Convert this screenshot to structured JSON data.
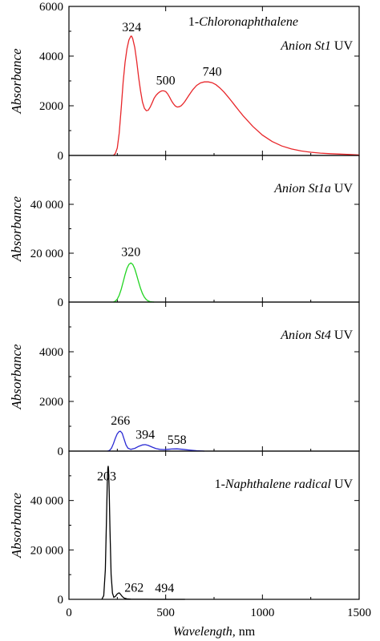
{
  "chart_data": [
    {
      "type": "line",
      "title": "",
      "annotation_line1_prefix": "1-",
      "annotation_line1_italic": "Chloronaphthalene",
      "annotation_line1_suffix": "",
      "annotation_line2_prefix": "",
      "annotation_line2_italic": "Anion St1",
      "annotation_line2_suffix": " UV",
      "ylabel": "Absorbance",
      "xlim": [
        0,
        1500
      ],
      "ylim": [
        0,
        6000
      ],
      "yticks": [
        0,
        2000,
        4000,
        6000
      ],
      "ytick_labels": [
        "0",
        "2000",
        "4000",
        "6000"
      ],
      "color": "#e8262a",
      "peak_labels": [
        {
          "x": 324,
          "y": 4800,
          "text": "324"
        },
        {
          "x": 500,
          "y": 2600,
          "text": "500"
        },
        {
          "x": 740,
          "y": 2950,
          "text": "740"
        }
      ],
      "series": [
        {
          "x": [
            230,
            240,
            250,
            260,
            270,
            280,
            290,
            300,
            310,
            320,
            324,
            330,
            340,
            350,
            360,
            370,
            380,
            390,
            400,
            410,
            420,
            430,
            440,
            450,
            460,
            470,
            480,
            490,
            500,
            510,
            520,
            530,
            540,
            550,
            560,
            570,
            580,
            590,
            600,
            620,
            640,
            660,
            680,
            700,
            720,
            740,
            760,
            780,
            800,
            820,
            840,
            860,
            880,
            900,
            950,
            1000,
            1050,
            1100,
            1150,
            1200,
            1250,
            1300,
            1350,
            1400,
            1450,
            1500
          ],
          "y": [
            0,
            80,
            300,
            900,
            1900,
            2950,
            3750,
            4300,
            4650,
            4800,
            4800,
            4700,
            4350,
            3800,
            3150,
            2600,
            2150,
            1900,
            1800,
            1820,
            1950,
            2120,
            2300,
            2420,
            2500,
            2560,
            2600,
            2600,
            2570,
            2480,
            2350,
            2200,
            2080,
            1990,
            1950,
            1960,
            2000,
            2080,
            2180,
            2420,
            2650,
            2820,
            2920,
            2960,
            2960,
            2930,
            2850,
            2720,
            2560,
            2380,
            2190,
            1990,
            1790,
            1600,
            1170,
            820,
            560,
            380,
            260,
            180,
            130,
            95,
            70,
            55,
            40,
            20
          ]
        }
      ]
    },
    {
      "type": "line",
      "title": "",
      "annotation_line1_prefix": "",
      "annotation_line1_italic": "",
      "annotation_line1_suffix": "",
      "annotation_line2_prefix": "",
      "annotation_line2_italic": "Anion St1a",
      "annotation_line2_suffix": " UV",
      "ylabel": "Absorbance",
      "xlim": [
        0,
        1500
      ],
      "ylim": [
        0,
        60000
      ],
      "yticks": [
        0,
        20000,
        40000
      ],
      "ytick_labels": [
        "0",
        "20 000",
        "40 000"
      ],
      "color": "#22d422",
      "peak_labels": [
        {
          "x": 320,
          "y": 16200,
          "text": "320"
        }
      ],
      "series": [
        {
          "x": [
            230,
            240,
            250,
            260,
            270,
            280,
            290,
            300,
            310,
            320,
            330,
            340,
            350,
            360,
            370,
            380,
            390,
            400,
            410,
            420,
            430,
            440
          ],
          "y": [
            0,
            400,
            1200,
            2800,
            5200,
            8200,
            11200,
            13800,
            15400,
            16000,
            15400,
            13600,
            11000,
            8200,
            5600,
            3500,
            2000,
            1000,
            450,
            180,
            60,
            0
          ]
        }
      ]
    },
    {
      "type": "line",
      "title": "",
      "annotation_line1_prefix": "",
      "annotation_line1_italic": "",
      "annotation_line1_suffix": "",
      "annotation_line2_prefix": "",
      "annotation_line2_italic": "Anion St4",
      "annotation_line2_suffix": " UV",
      "ylabel": "Absorbance",
      "xlim": [
        0,
        1500
      ],
      "ylim": [
        0,
        6000
      ],
      "yticks": [
        0,
        2000,
        4000
      ],
      "ytick_labels": [
        "0",
        "2000",
        "4000"
      ],
      "color": "#2a2ad4",
      "peak_labels": [
        {
          "x": 266,
          "y": 800,
          "text": "266"
        },
        {
          "x": 394,
          "y": 300,
          "text": "394"
        },
        {
          "x": 558,
          "y": 90,
          "text": "558"
        }
      ],
      "series": [
        {
          "x": [
            200,
            210,
            220,
            230,
            240,
            250,
            260,
            266,
            275,
            285,
            295,
            305,
            320,
            340,
            360,
            380,
            394,
            410,
            430,
            450,
            470,
            490,
            510,
            530,
            558,
            590,
            620,
            660,
            700
          ],
          "y": [
            0,
            30,
            120,
            300,
            520,
            700,
            790,
            800,
            720,
            480,
            250,
            120,
            70,
            110,
            190,
            250,
            260,
            230,
            160,
            100,
            70,
            60,
            70,
            85,
            90,
            70,
            45,
            15,
            0
          ]
        }
      ]
    },
    {
      "type": "line",
      "title": "",
      "annotation_line1_prefix": "",
      "annotation_line1_italic": "",
      "annotation_line1_suffix": "",
      "annotation_line2_prefix": "1-",
      "annotation_line2_italic": "Naphthalene radical",
      "annotation_line2_suffix": " UV",
      "ylabel": "Absorbance",
      "xlim": [
        0,
        1500
      ],
      "ylim": [
        0,
        60000
      ],
      "yticks": [
        0,
        20000,
        40000
      ],
      "ytick_labels": [
        "0",
        "20 000",
        "40 000"
      ],
      "color": "#000000",
      "xticks": [
        0,
        500,
        1000,
        1500
      ],
      "xtick_labels": [
        "0",
        "500",
        "1000",
        "1500"
      ],
      "xlabel_italic": "Wavelength",
      "xlabel_suffix": ", nm",
      "peak_labels": [
        {
          "x": 203,
          "y": 54000,
          "text": "203"
        },
        {
          "x": 262,
          "y": 2500,
          "text": "262"
        },
        {
          "x": 494,
          "y": 300,
          "text": "494"
        }
      ],
      "series": [
        {
          "x": [
            170,
            180,
            188,
            194,
            198,
            201,
            203,
            205,
            208,
            212,
            218,
            225,
            232,
            240,
            250,
            258,
            262,
            268,
            276,
            286,
            300,
            320,
            350,
            400,
            450,
            494,
            540,
            600
          ],
          "y": [
            0,
            1500,
            12000,
            32000,
            47000,
            53000,
            54000,
            52000,
            44000,
            28000,
            10000,
            2500,
            800,
            1200,
            2200,
            2600,
            2500,
            1900,
            1100,
            500,
            200,
            80,
            40,
            20,
            10,
            15,
            8,
            0
          ]
        }
      ]
    }
  ]
}
